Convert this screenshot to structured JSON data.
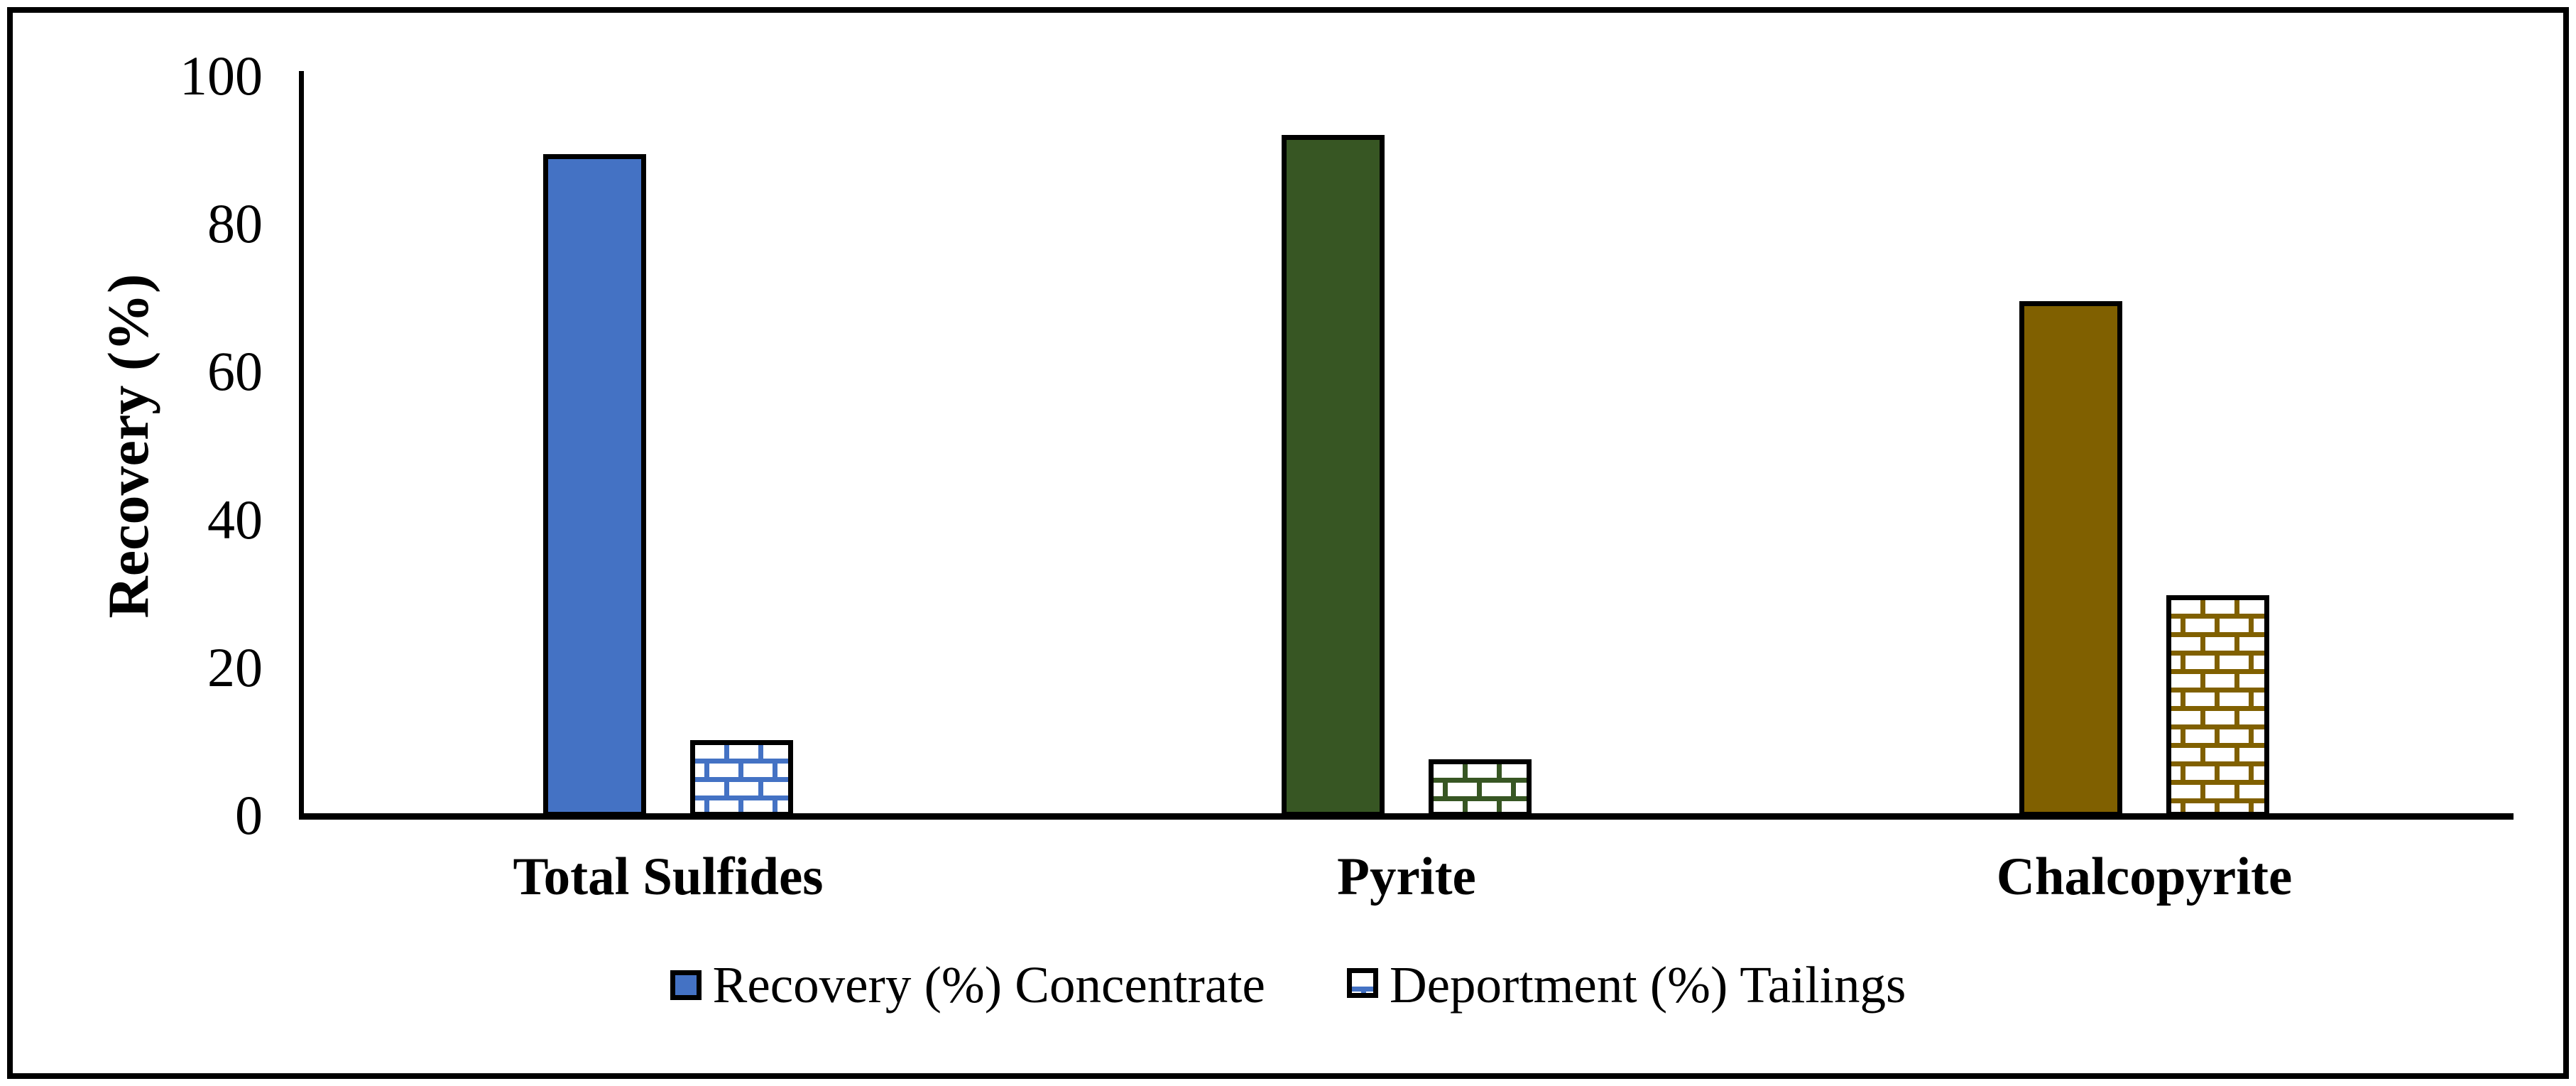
{
  "figure": {
    "background_color": "#ffffff",
    "frame_color": "#000000",
    "axis_color": "#000000",
    "text_color": "#000000"
  },
  "chart_data": {
    "type": "bar",
    "title": "",
    "xlabel": "",
    "ylabel": "Recovery (%)",
    "ylim": [
      0,
      100
    ],
    "yticks": [
      0,
      20,
      40,
      60,
      80,
      100
    ],
    "grid": false,
    "legend_position": "bottom-center",
    "bar_outline_color": "#000000",
    "brick_pattern_background": "#ffffff",
    "categories": [
      {
        "label": "Total Sulfides",
        "color": "#4472C4"
      },
      {
        "label": "Pyrite",
        "color": "#375623"
      },
      {
        "label": "Chalcopyrite",
        "color": "#806000"
      }
    ],
    "series": [
      {
        "name": "Recovery (%) Concentrate",
        "fill_style": "solid",
        "values": [
          89.6,
          92.2,
          69.7
        ]
      },
      {
        "name": "Deportment (%) Tailings",
        "fill_style": "brick-pattern",
        "values": [
          10.4,
          7.8,
          30.0
        ]
      }
    ]
  }
}
